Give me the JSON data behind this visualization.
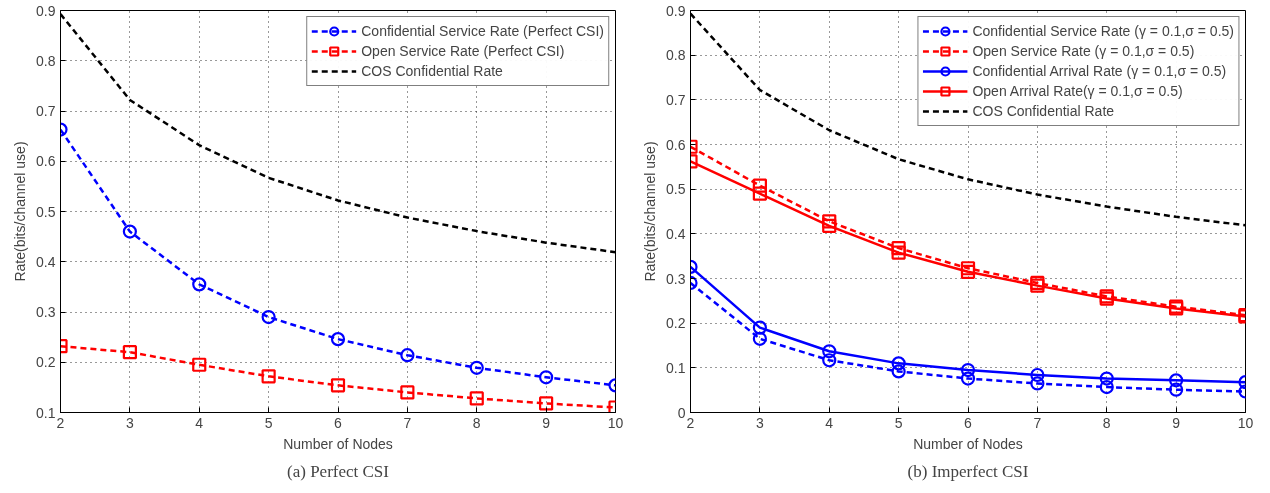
{
  "chart_data": [
    {
      "type": "line",
      "title": "(a) Perfect CSI",
      "xlabel": "Number of Nodes",
      "ylabel": "Rate(bits/channel use)",
      "x": [
        2,
        3,
        4,
        5,
        6,
        7,
        8,
        9,
        10
      ],
      "xlim": [
        2,
        10
      ],
      "xticks": [
        2,
        3,
        4,
        5,
        6,
        7,
        8,
        9,
        10
      ],
      "ylim": [
        0.1,
        0.9
      ],
      "yticks": [
        0.1,
        0.2,
        0.3,
        0.4,
        0.5,
        0.6,
        0.7,
        0.8,
        0.9
      ],
      "grid": true,
      "legend": "top right",
      "series": [
        {
          "name": "Confidential Service Rate (Perfect CSI)",
          "color": "#0000ff",
          "marker": "circle",
          "line_style": "dashed",
          "values": [
            0.663,
            0.46,
            0.355,
            0.29,
            0.246,
            0.214,
            0.189,
            0.17,
            0.154
          ]
        },
        {
          "name": "Open Service Rate (Perfect CSI)",
          "color": "#ff0000",
          "marker": "square",
          "line_style": "dashed",
          "values": [
            0.232,
            0.22,
            0.195,
            0.172,
            0.154,
            0.14,
            0.128,
            0.118,
            0.11
          ]
        },
        {
          "name": "COS Confidential Rate",
          "color": "#000000",
          "marker": "none",
          "line_style": "dashed",
          "values": [
            0.893,
            0.722,
            0.632,
            0.567,
            0.522,
            0.488,
            0.461,
            0.438,
            0.419
          ]
        }
      ]
    },
    {
      "type": "line",
      "title": "(b) Imperfect CSI",
      "xlabel": "Number of Nodes",
      "ylabel": "Rate(bits/channel use)",
      "x": [
        2,
        3,
        4,
        5,
        6,
        7,
        8,
        9,
        10
      ],
      "xlim": [
        2,
        10
      ],
      "xticks": [
        2,
        3,
        4,
        5,
        6,
        7,
        8,
        9,
        10
      ],
      "ylim": [
        0,
        0.9
      ],
      "yticks": [
        0,
        0.1,
        0.2,
        0.3,
        0.4,
        0.5,
        0.6,
        0.7,
        0.8,
        0.9
      ],
      "grid": true,
      "legend": "top right",
      "series": [
        {
          "name": "Confidential Service Rate (γ = 0.1,σ = 0.5)",
          "color": "#0000ff",
          "marker": "circle",
          "line_style": "dashed",
          "values": [
            0.29,
            0.165,
            0.117,
            0.092,
            0.076,
            0.065,
            0.057,
            0.051,
            0.047
          ]
        },
        {
          "name": "Open Service Rate (γ = 0.1,σ = 0.5)",
          "color": "#ff0000",
          "marker": "square",
          "line_style": "dashed",
          "values": [
            0.595,
            0.508,
            0.428,
            0.368,
            0.323,
            0.29,
            0.26,
            0.237,
            0.218
          ]
        },
        {
          "name": "Confidential Arrival Rate (γ = 0.1,σ = 0.5)",
          "color": "#0000ff",
          "marker": "circle",
          "line_style": "solid",
          "values": [
            0.326,
            0.19,
            0.137,
            0.11,
            0.095,
            0.084,
            0.076,
            0.072,
            0.068
          ]
        },
        {
          "name": "Open Arrival Rate(γ = 0.1,σ = 0.5)",
          "color": "#ff0000",
          "marker": "square",
          "line_style": "solid",
          "values": [
            0.562,
            0.49,
            0.418,
            0.358,
            0.315,
            0.284,
            0.255,
            0.233,
            0.215
          ]
        },
        {
          "name": "COS Confidential Rate",
          "color": "#000000",
          "marker": "none",
          "line_style": "dashed",
          "values": [
            0.893,
            0.722,
            0.632,
            0.567,
            0.522,
            0.488,
            0.461,
            0.438,
            0.419
          ]
        }
      ]
    }
  ]
}
